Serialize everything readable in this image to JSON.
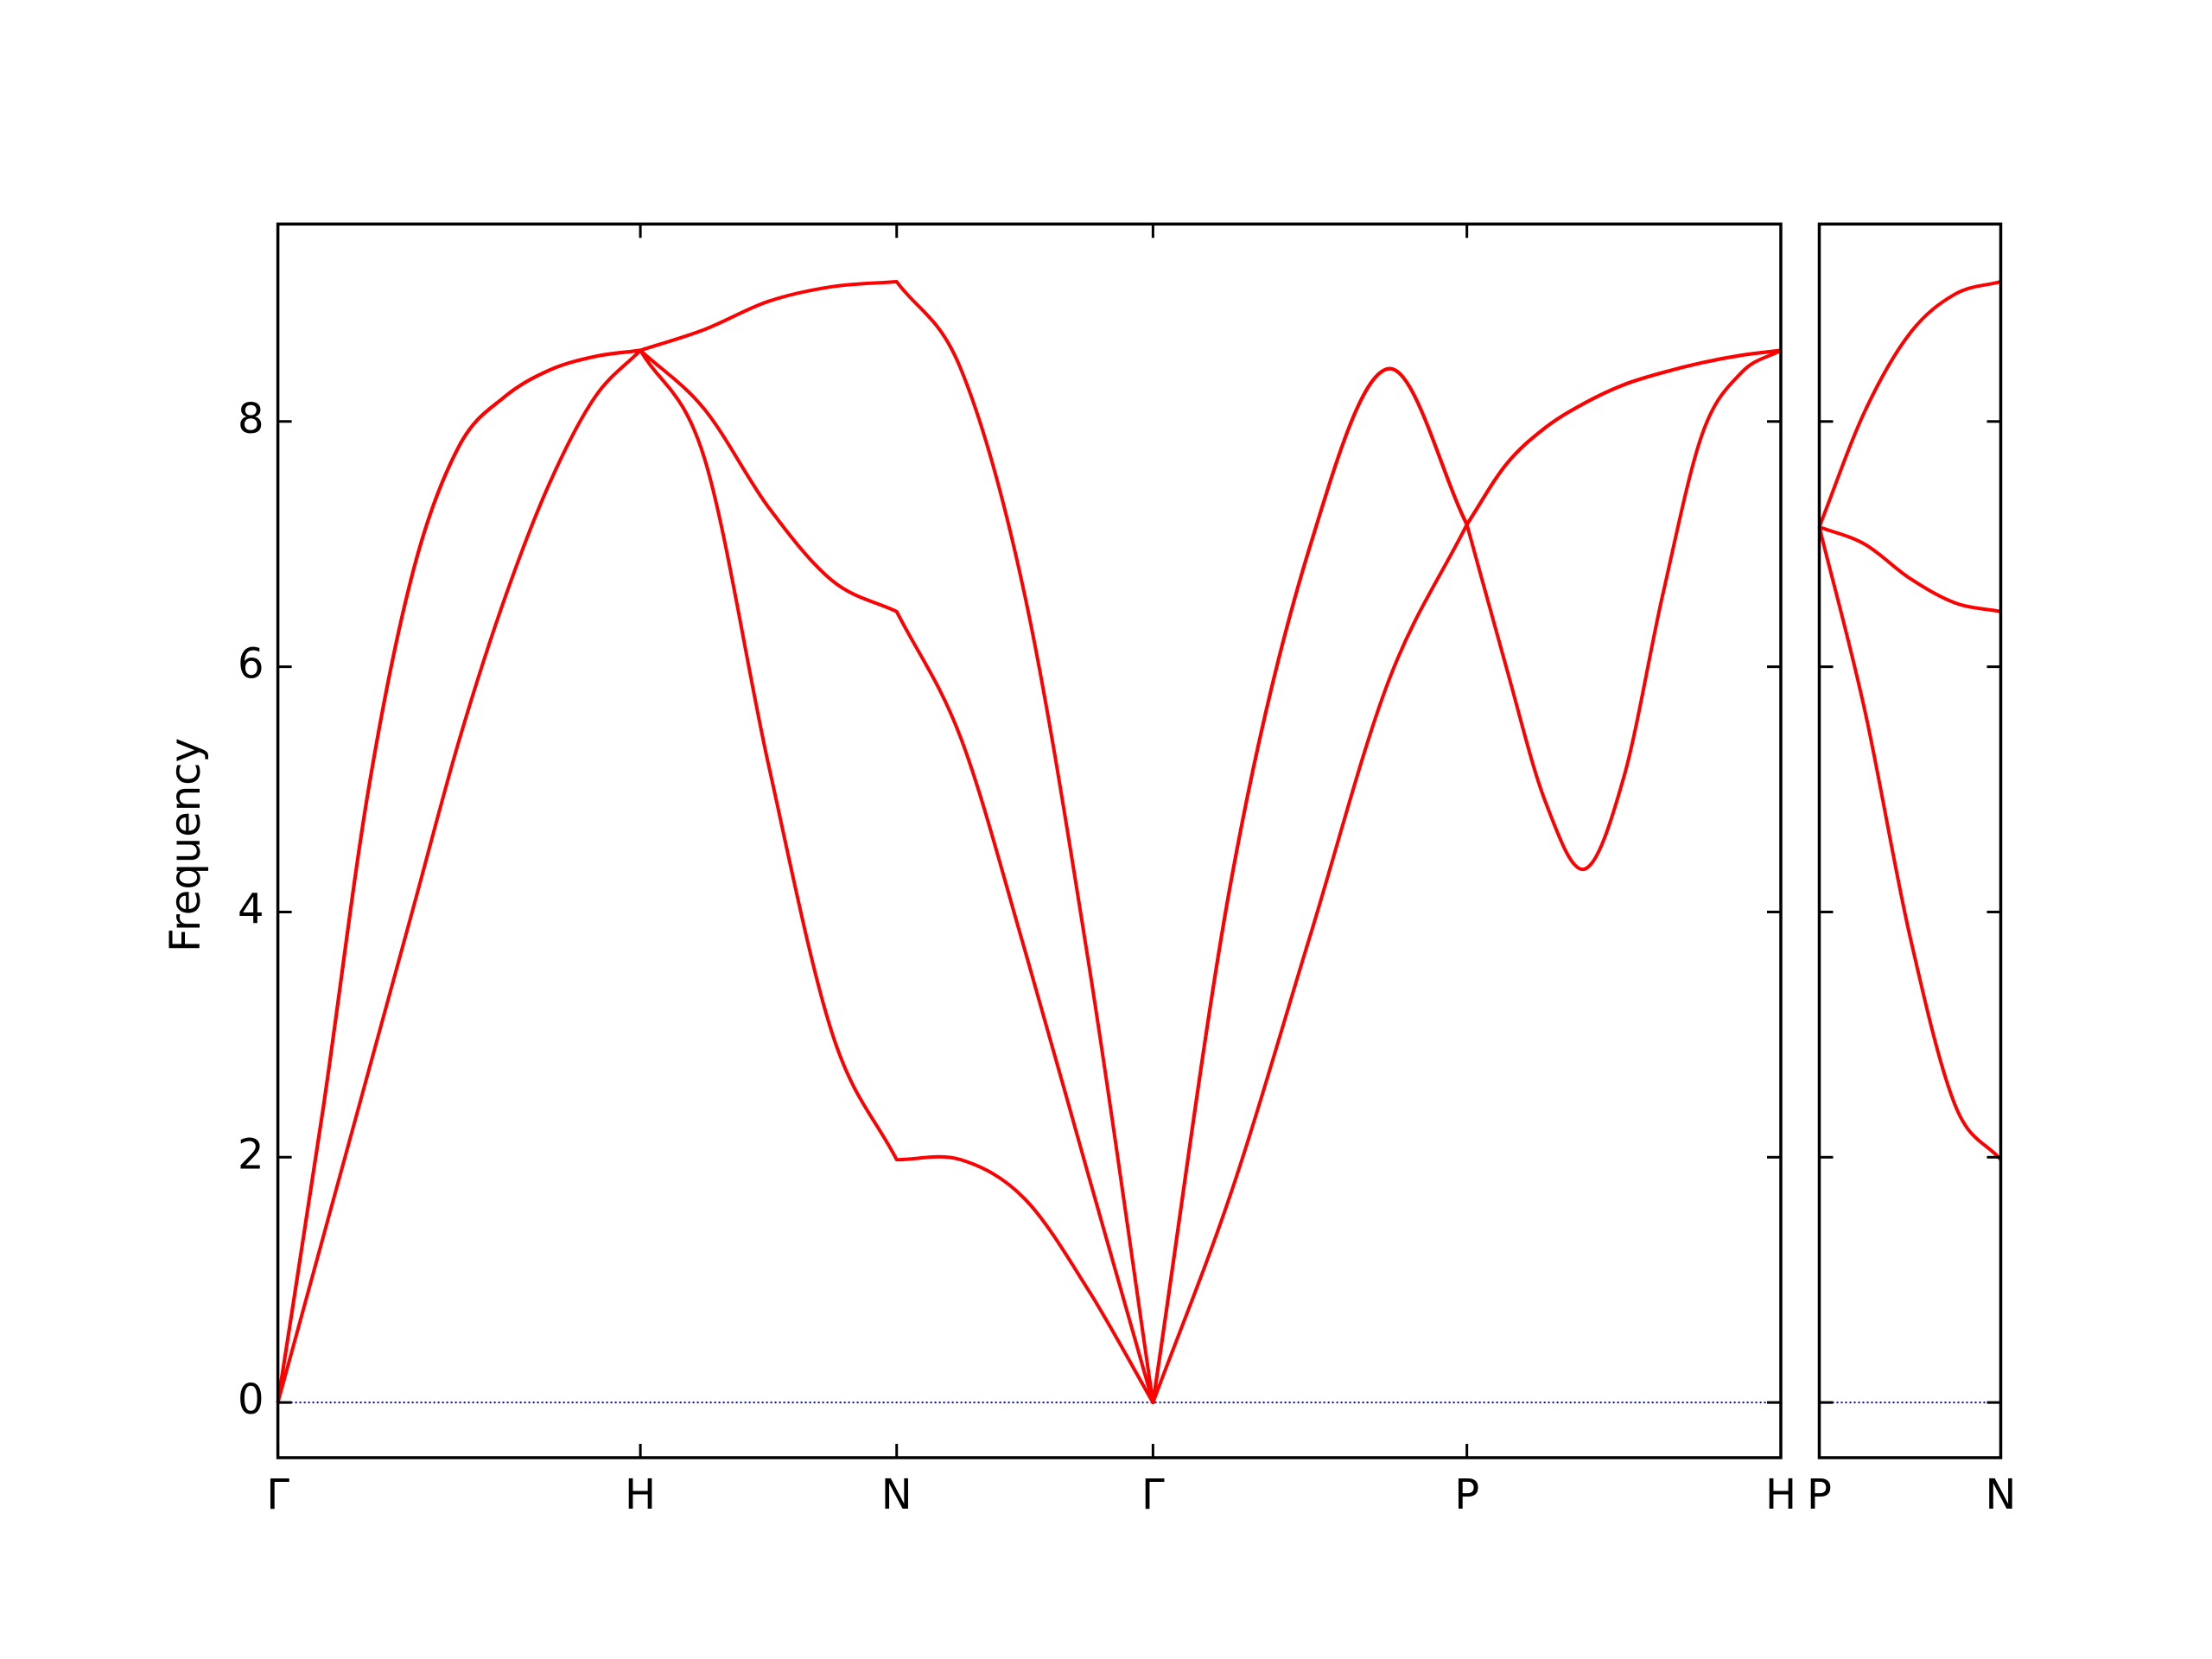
{
  "chart_data": [
    {
      "type": "line",
      "ylabel": "Frequency",
      "x": [
        0,
        0.125,
        0.25,
        0.375,
        0.5,
        0.625,
        0.75,
        0.875,
        1,
        1.1768,
        1.3536,
        1.5303,
        1.7071,
        1.8839,
        2.0607,
        2.2374,
        2.4142,
        2.6307,
        2.8472,
        3.0637,
        3.2802,
        3.3885,
        3.4967,
        3.605,
        3.7132,
        3.8215,
        3.9298,
        4.038,
        4.1463
      ],
      "xlim": [
        0,
        4.1463
      ],
      "xticks": [
        {
          "value": 0,
          "label": "Γ"
        },
        {
          "value": 1,
          "label": "H"
        },
        {
          "value": 1.7071,
          "label": "N"
        },
        {
          "value": 2.4142,
          "label": "Γ"
        },
        {
          "value": 3.2802,
          "label": "P"
        },
        {
          "value": 4.1463,
          "label": "H"
        }
      ],
      "ylim": [
        -0.45,
        9.61
      ],
      "yticks": [
        0,
        2,
        4,
        6,
        8
      ],
      "ytick_labels": true,
      "zero_line": {
        "value": 0,
        "color": "#0000aa"
      },
      "series": [
        {
          "color": "#ff0000",
          "values": [
            0,
            2.4,
            5.0,
            6.8,
            7.8,
            8.2,
            8.42,
            8.53,
            8.58,
            8.75,
            8.98,
            9.1,
            9.14,
            8.43,
            6.58,
            3.57,
            0,
            4.27,
            6.98,
            8.43,
            7.16,
            6.0,
            4.9,
            4.35,
            5.1,
            6.6,
            7.9,
            8.4,
            8.58
          ]
        },
        {
          "color": "#ff0000",
          "values": [
            0,
            2.4,
            5.0,
            6.8,
            7.8,
            8.2,
            8.42,
            8.53,
            8.58,
            8.1,
            7.3,
            6.7,
            6.45,
            5.42,
            3.69,
            1.84,
            0,
            4.27,
            6.98,
            8.43,
            7.16,
            7.65,
            7.95,
            8.15,
            8.3,
            8.4,
            8.48,
            8.54,
            8.58
          ]
        },
        {
          "color": "#ff0000",
          "values": [
            0,
            1.35,
            2.7,
            4.05,
            5.4,
            6.55,
            7.5,
            8.2,
            8.58,
            7.7,
            5.2,
            3.0,
            1.98,
            1.98,
            1.66,
            0.91,
            0,
            1.72,
            3.8,
            5.88,
            7.16,
            7.65,
            7.95,
            8.15,
            8.3,
            8.4,
            8.48,
            8.54,
            8.58
          ]
        }
      ]
    },
    {
      "type": "line",
      "x": [
        4.1463,
        4.2713,
        4.3963,
        4.5213,
        4.6463
      ],
      "xlim": [
        4.1463,
        4.6463
      ],
      "xticks": [
        {
          "value": 4.1463,
          "label": "P"
        },
        {
          "value": 4.6463,
          "label": "N"
        }
      ],
      "ylim": [
        -0.45,
        9.61
      ],
      "yticks": [
        0,
        2,
        4,
        6,
        8
      ],
      "ytick_labels": false,
      "zero_line": {
        "value": 0,
        "color": "#0000aa"
      },
      "series": [
        {
          "color": "#ff0000",
          "values": [
            7.14,
            8.08,
            8.72,
            9.04,
            9.14
          ]
        },
        {
          "color": "#ff0000",
          "values": [
            7.14,
            7.0,
            6.72,
            6.52,
            6.45
          ]
        },
        {
          "color": "#ff0000",
          "values": [
            7.14,
            5.65,
            3.8,
            2.42,
            1.98
          ]
        }
      ]
    }
  ]
}
